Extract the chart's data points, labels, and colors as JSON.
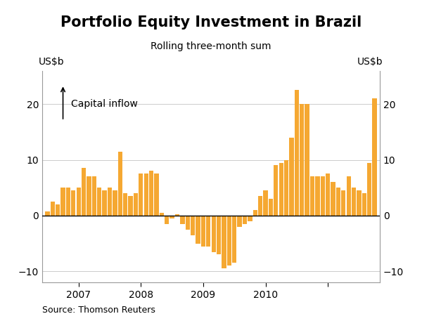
{
  "title": "Portfolio Equity Investment in Brazil",
  "subtitle": "Rolling three-month sum",
  "ylabel_left": "US$b",
  "ylabel_right": "US$b",
  "source": "Source: Thomson Reuters",
  "annotation": "Capital inflow",
  "bar_color": "#F5A832",
  "ylim": [
    -12,
    26
  ],
  "yticks": [
    -10,
    0,
    10,
    20
  ],
  "background_color": "#ffffff",
  "grid_color": "#cccccc",
  "title_fontsize": 15,
  "subtitle_fontsize": 10,
  "label_fontsize": 10,
  "tick_fontsize": 10,
  "values": [
    0.8,
    2.5,
    2.0,
    5.0,
    5.0,
    4.5,
    5.0,
    8.5,
    7.0,
    7.0,
    5.0,
    4.5,
    5.0,
    4.5,
    11.5,
    4.0,
    3.5,
    4.0,
    7.5,
    7.5,
    8.0,
    7.5,
    0.5,
    -1.5,
    -0.5,
    0.2,
    -1.5,
    -2.5,
    -3.5,
    -5.0,
    -5.5,
    -5.5,
    -6.5,
    -7.0,
    -9.5,
    -9.0,
    -8.5,
    -2.0,
    -1.5,
    -1.0,
    1.0,
    3.5,
    4.5,
    3.0,
    9.0,
    9.5,
    10.0,
    14.0,
    22.5,
    20.0,
    20.0,
    7.0,
    7.0,
    7.0,
    7.5,
    6.0,
    5.0,
    4.5,
    7.0,
    5.0,
    4.5,
    4.0,
    9.5,
    21.0
  ],
  "xtick_positions": [
    6,
    18,
    30,
    42,
    54
  ],
  "xtick_labels": [
    "2007",
    "2008",
    "2009",
    "2010",
    ""
  ]
}
